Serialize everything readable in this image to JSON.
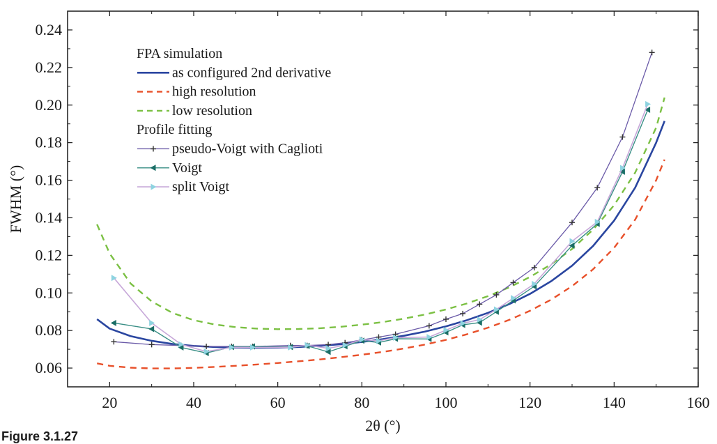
{
  "caption": "Figure 3.1.27",
  "colors": {
    "as_configured": "#2a46a0",
    "high_resolution": "#e8502a",
    "low_resolution": "#7bc043",
    "pseudo_voigt": "#6a5aa8",
    "pseudo_voigt_marker": "#333333",
    "voigt": "#3a8f86",
    "voigt_marker": "#1a6e66",
    "split_voigt": "#c7a8d9",
    "split_voigt_marker": "#8ed3e0"
  },
  "chart_data": {
    "type": "line",
    "xlabel": "2θ (°)",
    "ylabel": "FWHM (°)",
    "xlim": [
      10,
      160
    ],
    "ylim": [
      0.05,
      0.25
    ],
    "xticks": [
      20,
      40,
      60,
      80,
      100,
      120,
      140,
      160
    ],
    "yticks": [
      0.06,
      0.08,
      0.1,
      0.12,
      0.14,
      0.16,
      0.18,
      0.2,
      0.22,
      0.24
    ],
    "ytick_labels": [
      "0.06",
      "0.08",
      "0.10",
      "0.12",
      "0.14",
      "0.16",
      "0.18",
      "0.20",
      "0.22",
      "0.24"
    ],
    "legend": {
      "placement": "top-left",
      "group_headers": [
        "FPA simulation",
        "Profile fitting"
      ]
    },
    "series": [
      {
        "name": "as configured 2nd derivative",
        "group": "FPA simulation",
        "style": "solid",
        "x": [
          17,
          20,
          25,
          30,
          35,
          40,
          45,
          50,
          55,
          60,
          65,
          70,
          75,
          80,
          85,
          90,
          95,
          100,
          105,
          110,
          115,
          120,
          125,
          130,
          135,
          140,
          145,
          150,
          152
        ],
        "y": [
          0.086,
          0.081,
          0.077,
          0.0745,
          0.0728,
          0.0718,
          0.0712,
          0.0709,
          0.0708,
          0.0709,
          0.0712,
          0.0718,
          0.0727,
          0.0739,
          0.0754,
          0.0772,
          0.0794,
          0.0822,
          0.0855,
          0.0894,
          0.094,
          0.0995,
          0.1062,
          0.1145,
          0.125,
          0.1385,
          0.156,
          0.18,
          0.1915
        ]
      },
      {
        "name": "high resolution",
        "group": "FPA simulation",
        "style": "dashed",
        "x": [
          17,
          20,
          25,
          30,
          35,
          40,
          45,
          50,
          55,
          60,
          65,
          70,
          75,
          80,
          85,
          90,
          95,
          100,
          105,
          110,
          115,
          120,
          125,
          130,
          135,
          140,
          145,
          150,
          152
        ],
        "y": [
          0.0625,
          0.0612,
          0.0602,
          0.0598,
          0.0598,
          0.0601,
          0.0606,
          0.0612,
          0.0619,
          0.0627,
          0.0636,
          0.0646,
          0.0658,
          0.0671,
          0.0686,
          0.0704,
          0.0725,
          0.075,
          0.078,
          0.0815,
          0.0856,
          0.0905,
          0.0964,
          0.1036,
          0.1126,
          0.124,
          0.139,
          0.16,
          0.171
        ]
      },
      {
        "name": "low resolution",
        "group": "FPA simulation",
        "style": "dashed",
        "x": [
          17,
          20,
          25,
          30,
          35,
          40,
          45,
          50,
          55,
          60,
          65,
          70,
          75,
          80,
          85,
          90,
          95,
          100,
          105,
          110,
          115,
          120,
          125,
          130,
          135,
          140,
          145,
          150,
          152
        ],
        "y": [
          0.1365,
          0.121,
          0.105,
          0.0955,
          0.0893,
          0.0855,
          0.0832,
          0.0818,
          0.081,
          0.0807,
          0.0808,
          0.0812,
          0.082,
          0.0831,
          0.0845,
          0.0863,
          0.0885,
          0.0912,
          0.0944,
          0.0983,
          0.1029,
          0.1085,
          0.1152,
          0.1234,
          0.1337,
          0.1467,
          0.164,
          0.188,
          0.204
        ]
      },
      {
        "name": "pseudo-Voigt with Caglioti",
        "group": "Profile fitting",
        "marker": "plus",
        "x": [
          21,
          30,
          37,
          43,
          49,
          54,
          63,
          67,
          72,
          76,
          80,
          84,
          88,
          96,
          100,
          104,
          108,
          112,
          116,
          121,
          130,
          136,
          142,
          149
        ],
        "y": [
          0.074,
          0.0725,
          0.072,
          0.0715,
          0.0715,
          0.0715,
          0.072,
          0.072,
          0.0725,
          0.0735,
          0.075,
          0.0765,
          0.078,
          0.0825,
          0.086,
          0.089,
          0.094,
          0.099,
          0.1055,
          0.1135,
          0.1375,
          0.156,
          0.183,
          0.228
        ]
      },
      {
        "name": "Voigt",
        "group": "Profile fitting",
        "marker": "triangle-left",
        "x": [
          21,
          30,
          37,
          43,
          49,
          54,
          63,
          67,
          72,
          76,
          80,
          84,
          88,
          96,
          100,
          104,
          108,
          112,
          116,
          121,
          130,
          136,
          142,
          148
        ],
        "y": [
          0.084,
          0.0808,
          0.071,
          0.068,
          0.0712,
          0.0715,
          0.0712,
          0.0718,
          0.0686,
          0.0716,
          0.0746,
          0.0736,
          0.0756,
          0.0755,
          0.079,
          0.083,
          0.0842,
          0.09,
          0.096,
          0.1035,
          0.1252,
          0.1368,
          0.1645,
          0.1975
        ]
      },
      {
        "name": "split Voigt",
        "group": "Profile fitting",
        "marker": "triangle-right",
        "x": [
          21,
          30,
          37,
          43,
          49,
          54,
          63,
          67,
          72,
          76,
          80,
          84,
          88,
          96,
          100,
          104,
          108,
          112,
          116,
          121,
          130,
          136,
          142,
          148
        ],
        "y": [
          0.108,
          0.084,
          0.0726,
          0.0688,
          0.071,
          0.071,
          0.071,
          0.0722,
          0.0705,
          0.0722,
          0.0752,
          0.0745,
          0.0762,
          0.0765,
          0.0802,
          0.0838,
          0.0858,
          0.0912,
          0.0972,
          0.1048,
          0.1275,
          0.1378,
          0.1665,
          0.2005
        ]
      }
    ]
  }
}
